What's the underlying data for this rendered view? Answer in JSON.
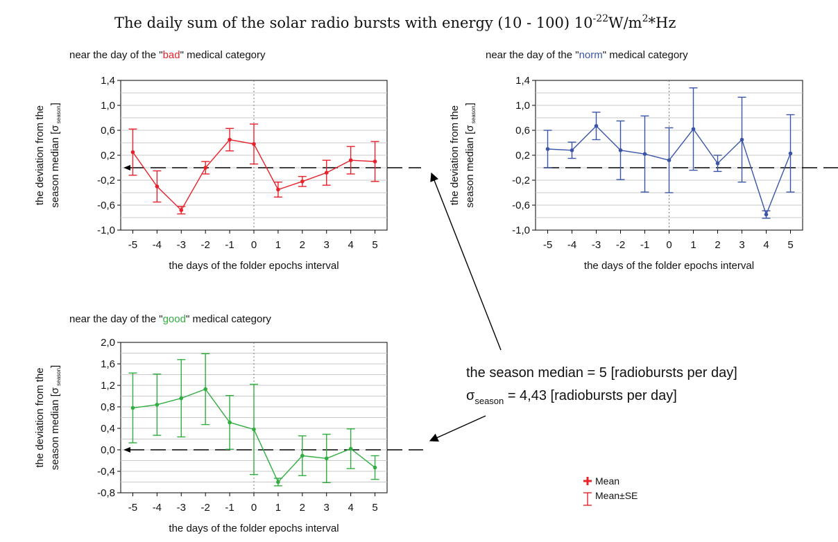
{
  "title": {
    "text": "The daily sum of the solar radio bursts with energy (10 - 100) 10",
    "exponent": "-22",
    "unit_w": "W/m",
    "unit_exp": "2",
    "unit_tail": "*Hz"
  },
  "xlabel": "the days of the folder epochs interval",
  "ylabel_line1": "the deviation from the",
  "ylabel_line2_pre": "season median [",
  "ylabel_sigma": "σ",
  "ylabel_sub": "season",
  "ylabel_close": "]",
  "note": {
    "median_text": "the season median = 5 [radiobursts per day]",
    "sigma": "σ",
    "sigma_sub": "season",
    "sigma_text": " = 4,43 [radiobursts per day]"
  },
  "legend": {
    "mean": "Mean",
    "mean_se": "Mean±SE"
  },
  "colors": {
    "bad": "#e8212b",
    "norm": "#3a55a8",
    "good": "#2fae3f",
    "grid": "#c8c8c8",
    "baseline": "#000000"
  },
  "chart_data": [
    {
      "type": "line",
      "title_pre": "near the day of the \"",
      "title_word": "bad",
      "title_post": "\" medical category",
      "color_key": "bad",
      "x": [
        -5,
        -4,
        -3,
        -2,
        -1,
        0,
        1,
        2,
        3,
        4,
        5
      ],
      "y": [
        0.25,
        -0.3,
        -0.68,
        0.0,
        0.45,
        0.38,
        -0.35,
        -0.22,
        -0.08,
        0.12,
        0.1
      ],
      "se": [
        0.37,
        0.25,
        0.06,
        0.1,
        0.18,
        0.32,
        0.12,
        0.08,
        0.2,
        0.22,
        0.32
      ],
      "ylim": [
        -1.0,
        1.4
      ],
      "yticks": [
        "1,4",
        "1,0",
        "0,6",
        "0,2",
        "-0,2",
        "-0,6",
        "-1,0"
      ],
      "xticks": [
        "-5",
        "-4",
        "-3",
        "-2",
        "-1",
        "0",
        "1",
        "2",
        "3",
        "4",
        "5"
      ],
      "baseline": 0.0
    },
    {
      "type": "line",
      "title_pre": "near the day of the \"",
      "title_word": "norm",
      "title_post": "\" medical category",
      "color_key": "norm",
      "x": [
        -5,
        -4,
        -3,
        -2,
        -1,
        0,
        1,
        2,
        3,
        4,
        5
      ],
      "y": [
        0.3,
        0.28,
        0.67,
        0.28,
        0.22,
        0.12,
        0.62,
        0.07,
        0.45,
        -0.75,
        0.23
      ],
      "se": [
        0.3,
        0.13,
        0.22,
        0.47,
        0.61,
        0.52,
        0.66,
        0.13,
        0.68,
        0.06,
        0.62
      ],
      "ylim": [
        -1.0,
        1.4
      ],
      "yticks": [
        "1,4",
        "1,0",
        "0,6",
        "0,2",
        "-0,2",
        "-0,6",
        "-1,0"
      ],
      "xticks": [
        "-5",
        "-4",
        "-3",
        "-2",
        "-1",
        "0",
        "1",
        "2",
        "3",
        "4",
        "5"
      ],
      "baseline": 0.0
    },
    {
      "type": "line",
      "title_pre": "near the day of the \"",
      "title_word": "good",
      "title_post": "\" medical category",
      "color_key": "good",
      "x": [
        -5,
        -4,
        -3,
        -2,
        -1,
        0,
        1,
        2,
        3,
        4,
        5
      ],
      "y": [
        0.78,
        0.84,
        0.96,
        1.13,
        0.51,
        0.38,
        -0.6,
        -0.11,
        -0.16,
        0.02,
        -0.33
      ],
      "se": [
        0.65,
        0.57,
        0.72,
        0.66,
        0.5,
        0.84,
        0.07,
        0.37,
        0.45,
        0.37,
        0.22
      ],
      "ylim": [
        -0.8,
        2.0
      ],
      "yticks": [
        "2,0",
        "1,6",
        "1,2",
        "0,8",
        "0,4",
        "0,0",
        "-0,4",
        "-0,8"
      ],
      "xticks": [
        "-5",
        "-4",
        "-3",
        "-2",
        "-1",
        "0",
        "1",
        "2",
        "3",
        "4",
        "5"
      ],
      "baseline": 0.0
    }
  ]
}
